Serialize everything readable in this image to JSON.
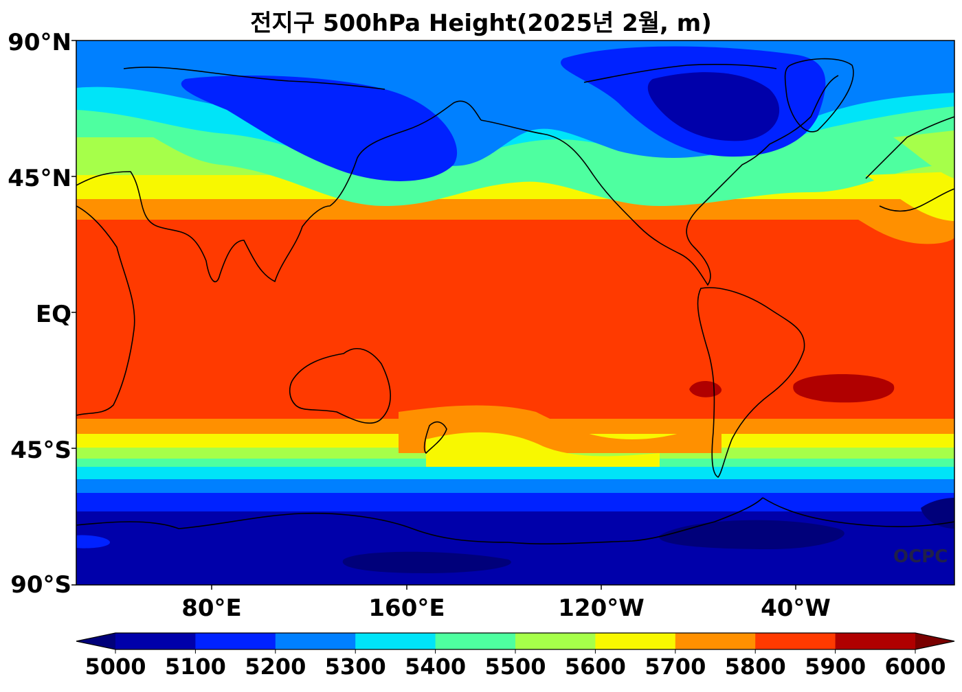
{
  "title": "전지구 500hPa Height(2025년 2월, m)",
  "lat_labels": [
    "90°N",
    "45°N",
    "EQ",
    "45°S",
    "90°S"
  ],
  "lon_labels": [
    "80°E",
    "160°E",
    "120°W",
    "40°W"
  ],
  "watermark": "OCPC",
  "colorbar": {
    "labels": [
      "5000",
      "5100",
      "5200",
      "5300",
      "5400",
      "5500",
      "5600",
      "5700",
      "5800",
      "5900",
      "6000"
    ],
    "colors": [
      "#0000aa",
      "#0022ff",
      "#0080ff",
      "#00e4f8",
      "#4effa0",
      "#a6ff4a",
      "#f8f800",
      "#ff9000",
      "#ff3a00",
      "#b00000"
    ],
    "under_color": "#00007a",
    "over_color": "#7a0000"
  },
  "field_bands": {
    "level_5000": "#0000aa",
    "level_5100": "#0022ff",
    "level_5200": "#0080ff",
    "level_5300": "#00e4f8",
    "level_5400": "#4effa0",
    "level_5500": "#a6ff4a",
    "level_5600": "#f8f800",
    "level_5700": "#ff9000",
    "level_5800": "#ff3a00",
    "level_5900": "#b00000",
    "below_5000": "#00007a"
  }
}
